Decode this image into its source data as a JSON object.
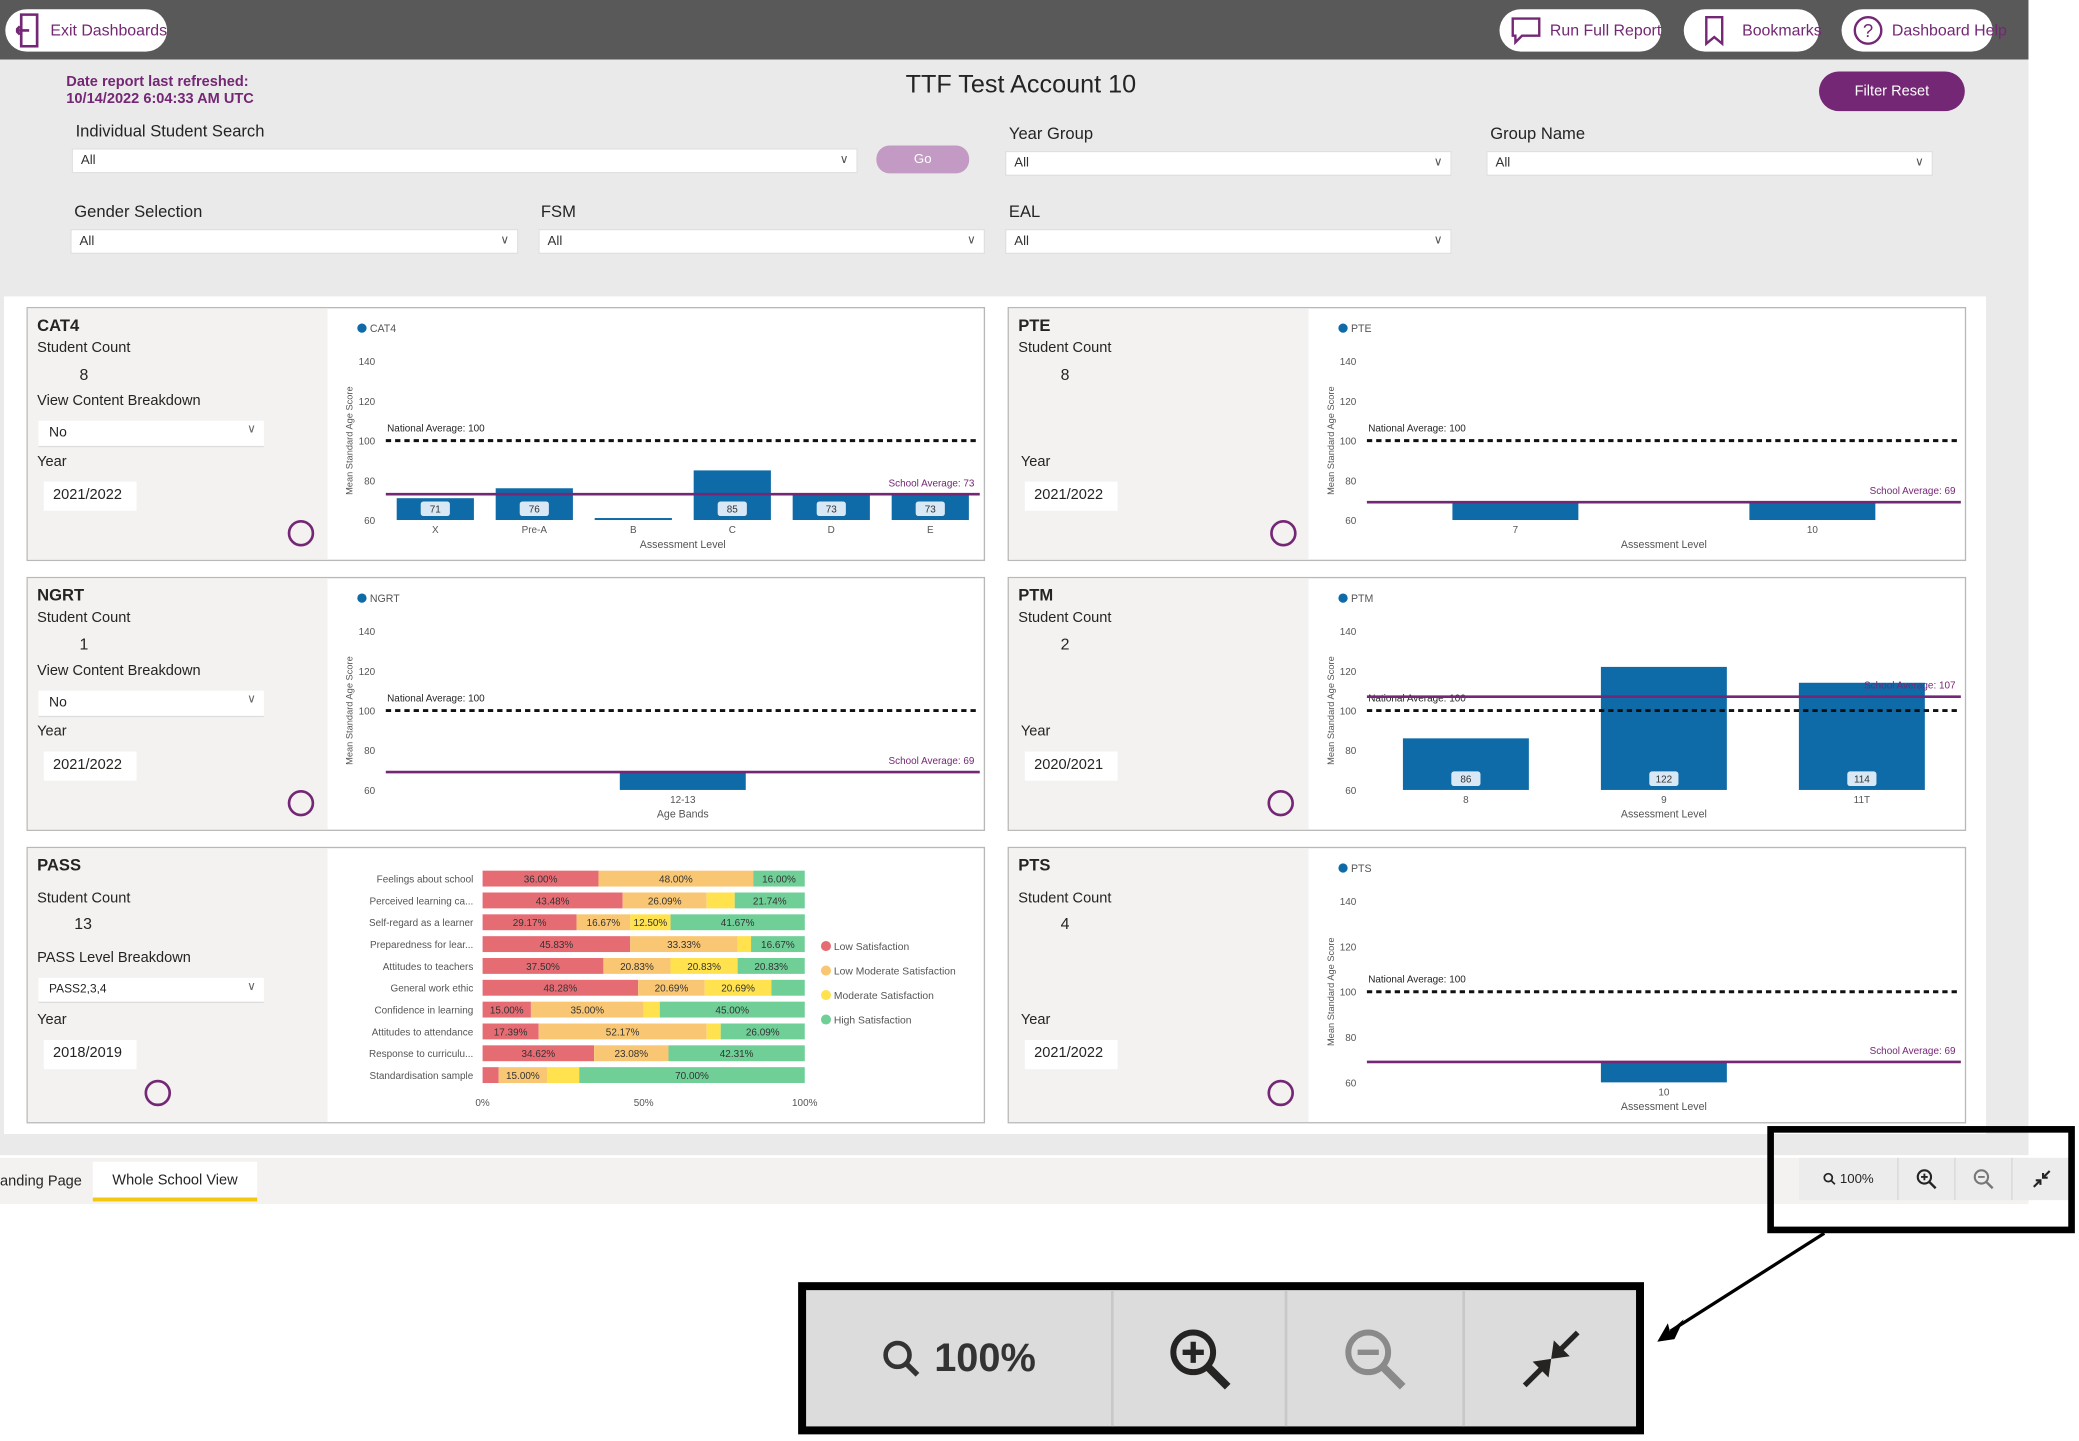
{
  "toolbar": {
    "exit_label": "Exit Dashboards",
    "run_full_report_label": "Run Full Report",
    "bookmarks_label": "Bookmarks",
    "help_label": "Dashboard Help"
  },
  "header": {
    "refreshed_label": "Date report last refreshed:",
    "refreshed_value": "10/14/2022 6:04:33 AM UTC",
    "title": "TTF Test Account 10",
    "filter_reset_label": "Filter Reset"
  },
  "filters": {
    "student_search": {
      "label": "Individual Student Search",
      "value": "All",
      "go_label": "Go"
    },
    "year_group": {
      "label": "Year Group",
      "value": "All"
    },
    "group_name": {
      "label": "Group Name",
      "value": "All"
    },
    "gender": {
      "label": "Gender Selection",
      "value": "All"
    },
    "fsm": {
      "label": "FSM",
      "value": "All"
    },
    "eal": {
      "label": "EAL",
      "value": "All"
    }
  },
  "panels": {
    "cat4": {
      "title": "CAT4",
      "count_label": "Student Count",
      "count": "8",
      "breakdown_label": "View Content Breakdown",
      "breakdown_value": "No",
      "year_label": "Year",
      "year": "2021/2022"
    },
    "pte": {
      "title": "PTE",
      "count_label": "Student Count",
      "count": "8",
      "year_label": "Year",
      "year": "2021/2022"
    },
    "ngrt": {
      "title": "NGRT",
      "count_label": "Student Count",
      "count": "1",
      "breakdown_label": "View Content Breakdown",
      "breakdown_value": "No",
      "year_label": "Year",
      "year": "2021/2022"
    },
    "ptm": {
      "title": "PTM",
      "count_label": "Student Count",
      "count": "2",
      "year_label": "Year",
      "year": "2020/2021"
    },
    "pass": {
      "title": "PASS",
      "count_label": "Student Count",
      "count": "13",
      "breakdown_label": "PASS Level Breakdown",
      "breakdown_value": "PASS2,3,4",
      "year_label": "Year",
      "year": "2018/2019"
    },
    "pts": {
      "title": "PTS",
      "count_label": "Student Count",
      "count": "4",
      "year_label": "Year",
      "year": "2021/2022"
    }
  },
  "chart_data": [
    {
      "id": "cat4",
      "type": "bar",
      "legend": "CAT4",
      "ylabel": "Mean Standard Age Score",
      "xlabel": "Assessment Level",
      "ylim": [
        60,
        140
      ],
      "yticks": [
        60,
        80,
        100,
        120,
        140
      ],
      "categories": [
        "X",
        "Pre-A",
        "B",
        "C",
        "D",
        "E"
      ],
      "values": [
        71,
        76,
        61,
        85,
        73,
        73
      ],
      "labels": [
        "71",
        "76",
        "",
        "85",
        "73",
        "73"
      ],
      "national_average": 100,
      "national_label": "National Average: 100",
      "school_average": 73,
      "school_label": "School Average: 73"
    },
    {
      "id": "pte",
      "type": "bar",
      "legend": "PTE",
      "ylabel": "Mean Standard Age Score",
      "xlabel": "Assessment Level",
      "ylim": [
        60,
        140
      ],
      "yticks": [
        60,
        80,
        100,
        120,
        140
      ],
      "categories": [
        "7",
        "10"
      ],
      "values": [
        69,
        69
      ],
      "labels": [
        "",
        ""
      ],
      "national_average": 100,
      "national_label": "National Average: 100",
      "school_average": 69,
      "school_label": "School Average: 69"
    },
    {
      "id": "ngrt",
      "type": "bar",
      "legend": "NGRT",
      "ylabel": "Mean Standard Age Score",
      "xlabel": "Age Bands",
      "ylim": [
        60,
        140
      ],
      "yticks": [
        60,
        80,
        100,
        120,
        140
      ],
      "categories": [
        "12-13"
      ],
      "values": [
        69
      ],
      "labels": [
        ""
      ],
      "national_average": 100,
      "national_label": "National Average: 100",
      "school_average": 69,
      "school_label": "School Average: 69"
    },
    {
      "id": "ptm",
      "type": "bar",
      "legend": "PTM",
      "ylabel": "Mean Standard Age Score",
      "xlabel": "Assessment Level",
      "ylim": [
        60,
        140
      ],
      "yticks": [
        60,
        80,
        100,
        120,
        140
      ],
      "categories": [
        "8",
        "9",
        "11T"
      ],
      "values": [
        86,
        122,
        114
      ],
      "labels": [
        "86",
        "122",
        "114"
      ],
      "national_average": 100,
      "national_label": "National Average: 100",
      "school_average": 107,
      "school_label": "School Average: 107"
    },
    {
      "id": "pts",
      "type": "bar",
      "legend": "PTS",
      "ylabel": "Mean Standard Age Score",
      "xlabel": "Assessment Level",
      "ylim": [
        60,
        140
      ],
      "yticks": [
        60,
        80,
        100,
        120,
        140
      ],
      "categories": [
        "10"
      ],
      "values": [
        69
      ],
      "labels": [
        ""
      ],
      "national_average": 100,
      "national_label": "National Average: 100",
      "school_average": 69,
      "school_label": "School Average: 69"
    },
    {
      "id": "pass",
      "type": "bar",
      "orientation": "horizontal",
      "stacked": true,
      "categories": [
        "Feelings about school",
        "Perceived learning ca...",
        "Self-regard as a learner",
        "Preparedness for lear...",
        "Attitudes to teachers",
        "General work ethic",
        "Confidence in learning",
        "Attitudes to attendance",
        "Response to curriculu...",
        "Standardisation sample"
      ],
      "xticks": [
        "0%",
        "50%",
        "100%"
      ],
      "series": [
        {
          "name": "Low Satisfaction",
          "color": "#e66c74",
          "values": [
            36.0,
            43.48,
            29.17,
            45.83,
            37.5,
            48.28,
            15.0,
            17.39,
            34.62,
            5.0
          ],
          "labels": [
            "36.00%",
            "43.48%",
            "29.17%",
            "45.83%",
            "37.50%",
            "48.28%",
            "15.00%",
            "17.39%",
            "34.62%",
            ""
          ]
        },
        {
          "name": "Low Moderate Satisfaction",
          "color": "#f9c774",
          "values": [
            48.0,
            26.09,
            16.67,
            33.33,
            20.83,
            20.69,
            35.0,
            52.17,
            23.08,
            15.0
          ],
          "labels": [
            "48.00%",
            "26.09%",
            "16.67%",
            "33.33%",
            "20.83%",
            "20.69%",
            "35.00%",
            "52.17%",
            "23.08%",
            "15.00%"
          ]
        },
        {
          "name": "Moderate Satisfaction",
          "color": "#ffe24d",
          "values": [
            0,
            8.69,
            12.5,
            4.17,
            20.83,
            20.69,
            5.0,
            4.35,
            0,
            10.0
          ],
          "labels": [
            "",
            "",
            "12.50%",
            "",
            "20.83%",
            "20.69%",
            "",
            "",
            "",
            ""
          ]
        },
        {
          "name": "High Satisfaction",
          "color": "#6fcf97",
          "values": [
            16.0,
            21.74,
            41.67,
            16.67,
            20.83,
            10.34,
            45.0,
            26.09,
            42.31,
            70.0
          ],
          "labels": [
            "16.00%",
            "21.74%",
            "41.67%",
            "16.67%",
            "20.83%",
            "",
            "45.00%",
            "26.09%",
            "42.31%",
            "70.00%"
          ]
        }
      ]
    }
  ],
  "tabs": [
    {
      "label": "anding Page",
      "active": false
    },
    {
      "label": "Whole School View",
      "active": true
    }
  ],
  "zoom": {
    "level": "100%"
  },
  "colors": {
    "brand": "#742774",
    "bar": "#0f6aa8",
    "topbar": "#595959"
  }
}
